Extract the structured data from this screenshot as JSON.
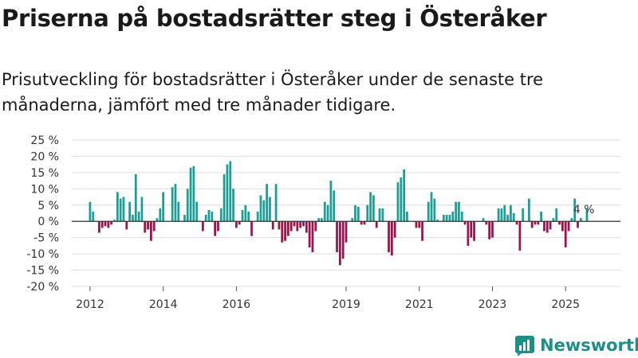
{
  "title": "Priserna på bostadsrätter steg i Österåker",
  "subtitle": "Prisutveckling för bostadsrätter i Österåker under de senaste tre månaderna, jämfört med tre månader tidigare.",
  "brand": "Newsworthy",
  "colors": {
    "positive": "#1a9e96",
    "negative": "#a0104a",
    "grid": "#dddddd",
    "brand": "#1c8f87"
  },
  "chart_data": {
    "type": "bar",
    "title": "Priserna på bostadsrätter steg i Österåker",
    "xlabel": "",
    "ylabel": "",
    "ylim": [
      -20,
      25
    ],
    "yticks": [
      25,
      20,
      15,
      10,
      5,
      0,
      -5,
      -10,
      -15,
      -20
    ],
    "ytick_labels": [
      "25 %",
      "20 %",
      "15 %",
      "10 %",
      "5 %",
      "0 %",
      "-5 %",
      "-10 %",
      "-15 %",
      "-20 %"
    ],
    "xticks": [
      2012,
      2014,
      2016,
      2019,
      2021,
      2023,
      2025
    ],
    "xlim": [
      2011.5,
      2026.5
    ],
    "start": 2012,
    "period": "month",
    "annotation": {
      "text": "4 %",
      "index": 162
    },
    "values": [
      6,
      3,
      0,
      -3.5,
      -2,
      -1.5,
      -2,
      -1,
      0.5,
      9,
      7,
      7.5,
      -2.5,
      6,
      2,
      14.5,
      3,
      7.5,
      -3.5,
      -2.5,
      -6,
      -3,
      1,
      4,
      9,
      0,
      0,
      10.5,
      11.5,
      6,
      0,
      2,
      10,
      16.5,
      17,
      6,
      0,
      -3,
      2,
      3.5,
      3,
      -4.5,
      -3,
      4,
      14.5,
      17.5,
      18.5,
      10,
      -2,
      -1,
      3.5,
      5,
      3,
      -4.5,
      0,
      3,
      8,
      6.5,
      11.5,
      7.5,
      -2.5,
      11.5,
      -2.5,
      -6.5,
      -6,
      -4.5,
      -3,
      -1.5,
      -3,
      -2,
      -1.5,
      -3.5,
      -8,
      -9.5,
      -3,
      1,
      1,
      6,
      5,
      12.5,
      9.5,
      -9.5,
      -13.5,
      -11.5,
      -6.5,
      0,
      1,
      5,
      4.5,
      -1,
      -1,
      5,
      9,
      8,
      -2,
      4,
      4,
      0,
      -9.5,
      -10.5,
      -5,
      12,
      13.5,
      16,
      3,
      0,
      0,
      -2,
      -2,
      -6,
      0,
      6,
      9,
      7,
      0.5,
      0,
      2,
      2,
      2,
      3,
      6,
      6,
      3,
      -1,
      -7.5,
      -5,
      -6,
      0,
      0,
      1,
      -1,
      -5.5,
      -5,
      0,
      4,
      4,
      5,
      2,
      5,
      2.5,
      -1,
      -9,
      4,
      0,
      7,
      -2,
      -1,
      -1,
      3,
      -3,
      -3.5,
      -2.5,
      1,
      4,
      -1,
      -3,
      -8,
      -3,
      1,
      7,
      -2,
      1,
      0,
      4
    ]
  }
}
